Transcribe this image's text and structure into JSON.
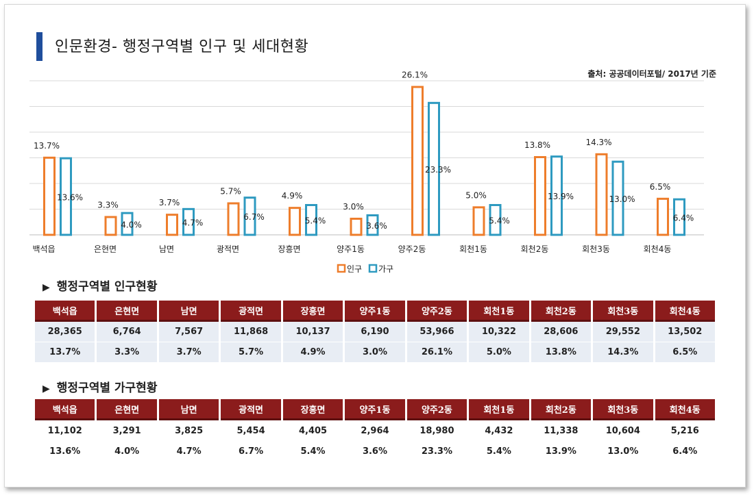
{
  "page_title": "인문환경- 행정구역별 인구 및 세대현황",
  "source": "출처: 공공데이터포털/ 2017년 기준",
  "colors": {
    "population": "#ee7d2b",
    "households": "#2e9ac0",
    "header": "#8b1c1c"
  },
  "chart_data": {
    "type": "bar",
    "categories": [
      "백석읍",
      "은현면",
      "남면",
      "광적면",
      "장흥면",
      "양주1동",
      "양주2동",
      "회천1동",
      "회천2동",
      "회천3동",
      "회천4동"
    ],
    "series": [
      {
        "name": "인구",
        "values": [
          13.7,
          3.3,
          3.7,
          5.7,
          4.9,
          3.0,
          26.1,
          5.0,
          13.8,
          14.3,
          6.5
        ],
        "labels": [
          "13.7%",
          "3.3%",
          "3.7%",
          "5.7%",
          "4.9%",
          "3.0%",
          "26.1%",
          "5.0%",
          "13.8%",
          "14.3%",
          "6.5%"
        ]
      },
      {
        "name": "가구",
        "values": [
          13.6,
          4.0,
          4.7,
          6.7,
          5.4,
          3.6,
          23.3,
          5.4,
          13.9,
          13.0,
          6.4
        ],
        "labels": [
          "13.6%",
          "4.0%",
          "4.7%",
          "6.7%",
          "5.4%",
          "3.6%",
          "23.3%",
          "5.4%",
          "13.9%",
          "13.0%",
          "6.4%"
        ]
      }
    ],
    "ylim": [
      0,
      27
    ],
    "grid": true,
    "legend": "bottom-center"
  },
  "population_section": {
    "heading": "행정구역별 인구현황",
    "headers": [
      "백석읍",
      "은현면",
      "남면",
      "광적면",
      "장흥면",
      "양주1동",
      "양주2동",
      "회천1동",
      "회천2동",
      "회천3동",
      "회천4동"
    ],
    "rows": [
      [
        "28,365",
        "6,764",
        "7,567",
        "11,868",
        "10,137",
        "6,190",
        "53,966",
        "10,322",
        "28,606",
        "29,552",
        "13,502"
      ],
      [
        "13.7%",
        "3.3%",
        "3.7%",
        "5.7%",
        "4.9%",
        "3.0%",
        "26.1%",
        "5.0%",
        "13.8%",
        "14.3%",
        "6.5%"
      ]
    ]
  },
  "household_section": {
    "heading": "행정구역별 가구현황",
    "headers": [
      "백석읍",
      "은현면",
      "남면",
      "광적면",
      "장흥면",
      "양주1동",
      "양주2동",
      "회천1동",
      "회천2동",
      "회천3동",
      "회천4동"
    ],
    "rows": [
      [
        "11,102",
        "3,291",
        "3,825",
        "5,454",
        "4,405",
        "2,964",
        "18,980",
        "4,432",
        "11,338",
        "10,604",
        "5,216"
      ],
      [
        "13.6%",
        "4.0%",
        "4.7%",
        "6.7%",
        "5.4%",
        "3.6%",
        "23.3%",
        "5.4%",
        "13.9%",
        "13.0%",
        "6.4%"
      ]
    ]
  }
}
